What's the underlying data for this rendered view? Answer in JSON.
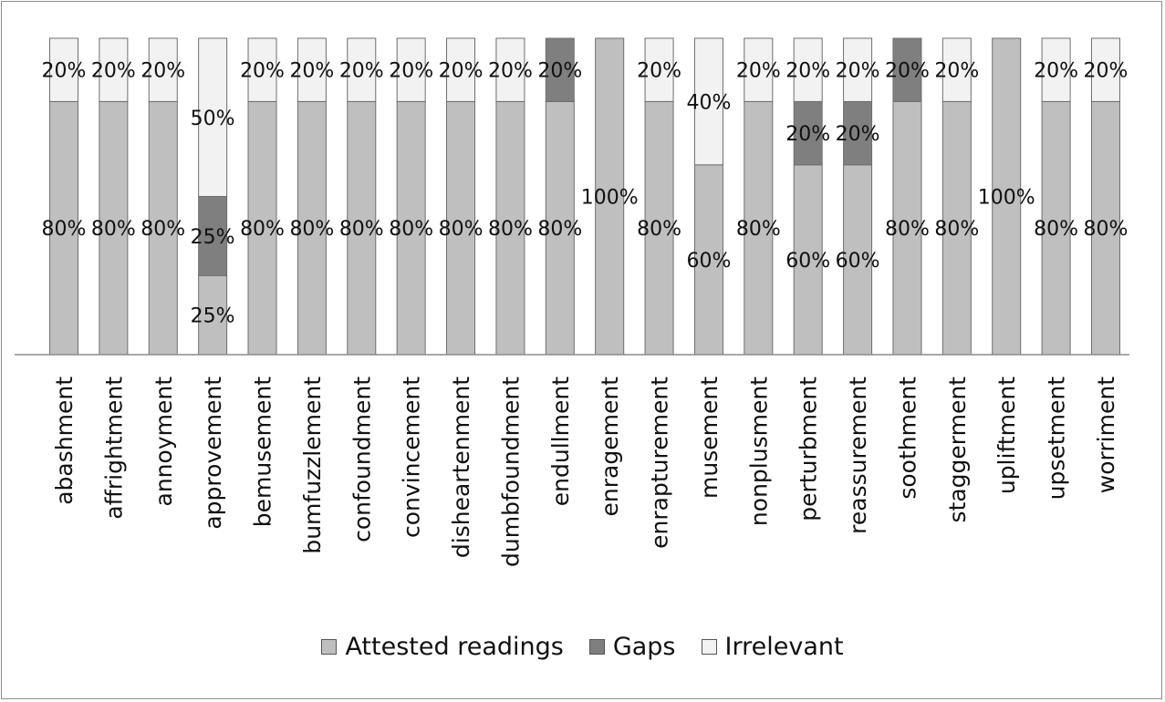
{
  "chart_data": {
    "type": "bar",
    "stacked": true,
    "normalized": true,
    "title": "",
    "xlabel": "",
    "ylabel": "",
    "ylim": [
      0,
      100
    ],
    "grid": false,
    "legend_position": "bottom",
    "categories": [
      "abashment",
      "affrightment",
      "annoyment",
      "approvement",
      "bemusement",
      "bumfuzzlement",
      "confoundment",
      "convincement",
      "disheartenment",
      "dumbfoundment",
      "endullment",
      "enragement",
      "enrapturement",
      "musement",
      "nonplusment",
      "perturbment",
      "reassurement",
      "soothment",
      "staggerment",
      "upliftment",
      "upsetment",
      "worriment"
    ],
    "series": [
      {
        "name": "Attested readings",
        "color": "#bfbfbf",
        "values": [
          80,
          80,
          80,
          25,
          80,
          80,
          80,
          80,
          80,
          80,
          80,
          100,
          80,
          60,
          80,
          60,
          60,
          80,
          80,
          100,
          80,
          80
        ],
        "labels": [
          "80%",
          "80%",
          "80%",
          "25%",
          "80%",
          "80%",
          "80%",
          "80%",
          "80%",
          "80%",
          "80%",
          "100%",
          "80%",
          "60%",
          "80%",
          "60%",
          "60%",
          "80%",
          "80%",
          "100%",
          "80%",
          "80%"
        ]
      },
      {
        "name": "Gaps",
        "color": "#7f7f7f",
        "values": [
          0,
          0,
          0,
          25,
          0,
          0,
          0,
          0,
          0,
          0,
          20,
          0,
          0,
          0,
          0,
          20,
          20,
          20,
          0,
          0,
          0,
          0
        ],
        "labels": [
          "",
          "",
          "",
          "25%",
          "",
          "",
          "",
          "",
          "",
          "",
          "20%",
          "",
          "",
          "",
          "",
          "20%",
          "20%",
          "20%",
          "",
          "",
          "",
          ""
        ]
      },
      {
        "name": "Irrelevant",
        "color": "#f2f2f2",
        "values": [
          20,
          20,
          20,
          50,
          20,
          20,
          20,
          20,
          20,
          20,
          0,
          0,
          20,
          40,
          20,
          20,
          20,
          0,
          20,
          0,
          20,
          20
        ],
        "labels": [
          "20%",
          "20%",
          "20%",
          "50%",
          "20%",
          "20%",
          "20%",
          "20%",
          "20%",
          "20%",
          "",
          "",
          "20%",
          "40%",
          "20%",
          "20%",
          "20%",
          "",
          "20%",
          "",
          "20%",
          "20%"
        ]
      }
    ]
  }
}
